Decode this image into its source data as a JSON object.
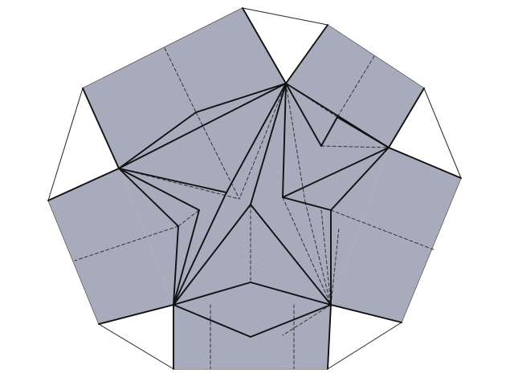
{
  "diagram": {
    "subject": "origami-crease-pattern-heptagon",
    "colors": {
      "background": "#ffffff",
      "paper_white": "#ffffff",
      "paper_colored": "#a7abbb",
      "outline": "#222222",
      "mountain_fold": "#111111",
      "valley_fold": "#333333"
    },
    "line_styles": {
      "mountain_fold": "solid",
      "valley_fold": "dashed"
    }
  }
}
